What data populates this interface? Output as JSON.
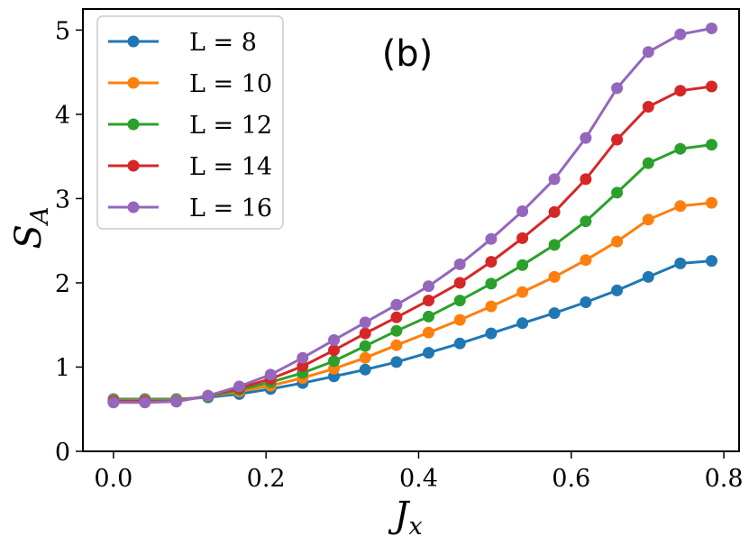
{
  "chart_data": {
    "type": "line",
    "annotation": "(b)",
    "xlabel_main": "J",
    "xlabel_sub": "x",
    "ylabel_main": "S",
    "ylabel_sub": "A",
    "xlim": [
      -0.04,
      0.82
    ],
    "ylim": [
      0,
      5.25
    ],
    "xticks": [
      0.0,
      0.2,
      0.4,
      0.6,
      0.8
    ],
    "xtick_labels": [
      "0.0",
      "0.2",
      "0.4",
      "0.6",
      "0.8"
    ],
    "yticks": [
      0,
      1,
      2,
      3,
      4,
      5
    ],
    "ytick_labels": [
      "0",
      "1",
      "2",
      "3",
      "4",
      "5"
    ],
    "grid": false,
    "legend_position": "top-left",
    "x": [
      0.0,
      0.0413,
      0.0825,
      0.124,
      0.165,
      0.206,
      0.248,
      0.289,
      0.33,
      0.371,
      0.413,
      0.454,
      0.495,
      0.536,
      0.578,
      0.619,
      0.66,
      0.701,
      0.743,
      0.784
    ],
    "series": [
      {
        "name": "L = 8",
        "color": "#1f77b4",
        "values": [
          0.62,
          0.62,
          0.62,
          0.64,
          0.68,
          0.74,
          0.81,
          0.89,
          0.97,
          1.06,
          1.17,
          1.28,
          1.4,
          1.52,
          1.64,
          1.77,
          1.91,
          2.07,
          2.23,
          2.26
        ]
      },
      {
        "name": "L = 10",
        "color": "#ff7f0e",
        "values": [
          0.61,
          0.61,
          0.61,
          0.65,
          0.71,
          0.78,
          0.87,
          0.98,
          1.11,
          1.26,
          1.41,
          1.56,
          1.72,
          1.89,
          2.07,
          2.27,
          2.49,
          2.75,
          2.91,
          2.95
        ]
      },
      {
        "name": "L = 12",
        "color": "#2ca02c",
        "values": [
          0.6,
          0.6,
          0.6,
          0.65,
          0.73,
          0.82,
          0.93,
          1.07,
          1.25,
          1.43,
          1.6,
          1.79,
          1.99,
          2.21,
          2.45,
          2.73,
          3.07,
          3.42,
          3.59,
          3.64
        ]
      },
      {
        "name": "L = 14",
        "color": "#d62728",
        "values": [
          0.59,
          0.59,
          0.59,
          0.66,
          0.75,
          0.86,
          1.01,
          1.2,
          1.4,
          1.59,
          1.79,
          2.0,
          2.25,
          2.53,
          2.84,
          3.23,
          3.7,
          4.09,
          4.28,
          4.33
        ]
      },
      {
        "name": "L = 16",
        "color": "#9467bd",
        "values": [
          0.58,
          0.58,
          0.59,
          0.66,
          0.77,
          0.91,
          1.11,
          1.32,
          1.53,
          1.74,
          1.96,
          2.22,
          2.52,
          2.85,
          3.23,
          3.72,
          4.31,
          4.74,
          4.95,
          5.02
        ]
      }
    ]
  }
}
